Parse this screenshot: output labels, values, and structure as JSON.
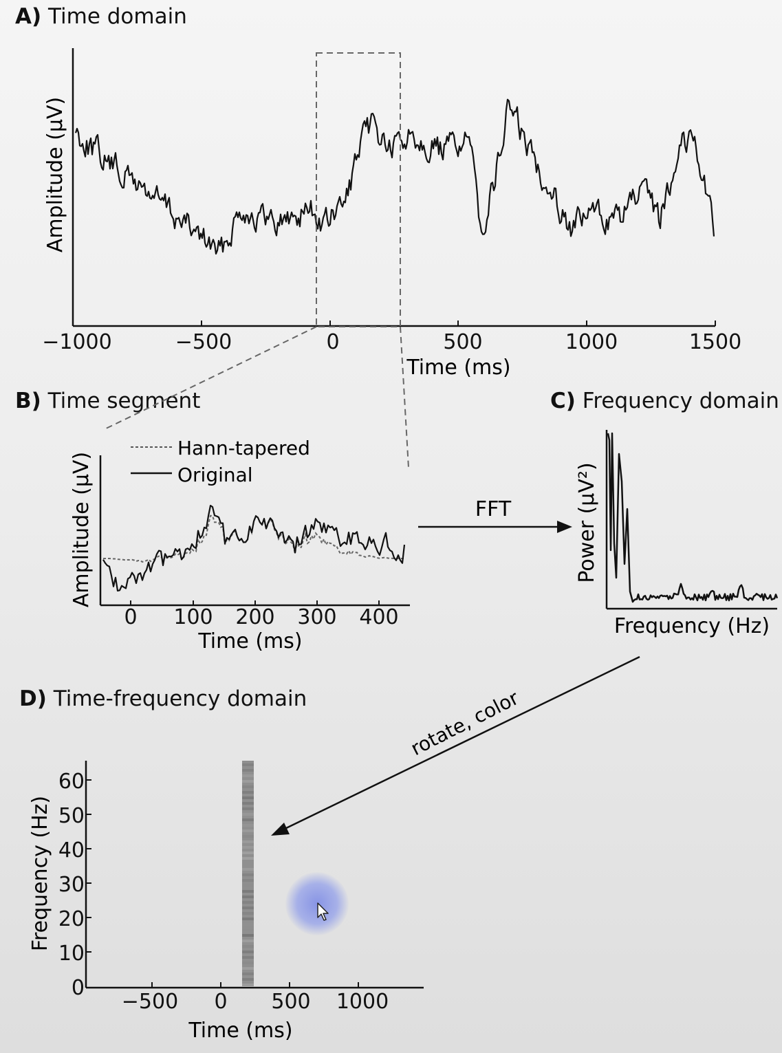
{
  "panels": {
    "a": {
      "letter": "A)",
      "title": "Time domain",
      "ylabel": "Amplitude (µV)",
      "xlabel": "Time (ms)",
      "xticks": [
        "−1000",
        "−500",
        "0",
        "500",
        "1000",
        "1500"
      ]
    },
    "b": {
      "letter": "B)",
      "title": "Time segment",
      "ylabel": "Amplitude (µV)",
      "xlabel": "Time (ms)",
      "xticks": [
        "0",
        "100",
        "200",
        "300",
        "400"
      ],
      "legend": {
        "tapered": "Hann-tapered",
        "original": "Original"
      }
    },
    "c": {
      "letter": "C)",
      "title": "Frequency domain",
      "ylabel": "Power (µV²)",
      "xlabel": "Frequency (Hz)"
    },
    "d": {
      "letter": "D)",
      "title": "Time-frequency domain",
      "ylabel": "Frequency (Hz)",
      "xlabel": "Time (ms)",
      "xticks": [
        "−500",
        "0",
        "500",
        "1000"
      ],
      "yticks": [
        "0",
        "10",
        "20",
        "30",
        "40",
        "50",
        "60"
      ]
    }
  },
  "arrows": {
    "fft_label": "FFT",
    "rotate_label": "rotate, color"
  },
  "colors": {
    "trace": "#111111",
    "dashed": "#666666",
    "highlight": "#8f8f8f",
    "cursor_glow": "#7f8ce6"
  },
  "icons": {
    "cursor": "mouse-pointer-icon"
  }
}
